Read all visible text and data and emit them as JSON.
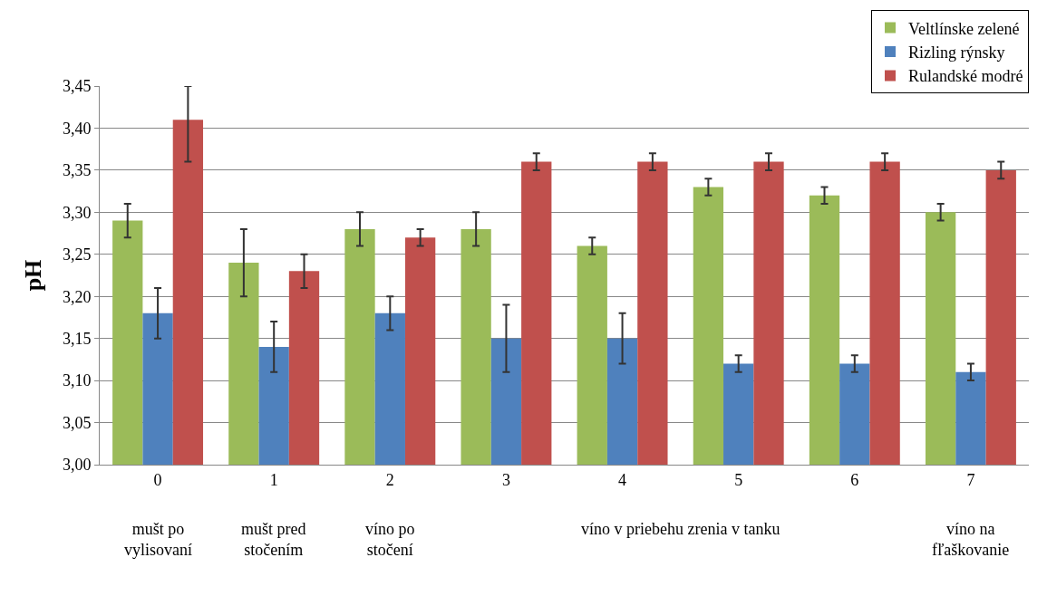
{
  "chart_data": {
    "type": "bar",
    "ylabel": "pH",
    "categories": [
      "0",
      "1",
      "2",
      "3",
      "4",
      "5",
      "6",
      "7"
    ],
    "series": [
      {
        "name": "Veltlínske zelené",
        "color": "#9bbb59",
        "values": [
          3.29,
          3.24,
          3.28,
          3.28,
          3.26,
          3.33,
          3.32,
          3.3
        ],
        "errors": [
          [
            3.27,
            3.31
          ],
          [
            3.2,
            3.28
          ],
          [
            3.26,
            3.3
          ],
          [
            3.26,
            3.3
          ],
          [
            3.25,
            3.27
          ],
          [
            3.32,
            3.34
          ],
          [
            3.31,
            3.33
          ],
          [
            3.29,
            3.31
          ]
        ]
      },
      {
        "name": "Rizling rýnsky",
        "color": "#4f81bd",
        "values": [
          3.18,
          3.14,
          3.18,
          3.15,
          3.15,
          3.12,
          3.12,
          3.11
        ],
        "errors": [
          [
            3.15,
            3.21
          ],
          [
            3.11,
            3.17
          ],
          [
            3.16,
            3.2
          ],
          [
            3.11,
            3.19
          ],
          [
            3.12,
            3.18
          ],
          [
            3.11,
            3.13
          ],
          [
            3.11,
            3.13
          ],
          [
            3.1,
            3.12
          ]
        ]
      },
      {
        "name": "Rulandské modré",
        "color": "#c0504d",
        "values": [
          3.41,
          3.23,
          3.27,
          3.36,
          3.36,
          3.36,
          3.36,
          3.35
        ],
        "errors": [
          [
            3.36,
            3.45
          ],
          [
            3.21,
            3.25
          ],
          [
            3.26,
            3.28
          ],
          [
            3.35,
            3.37
          ],
          [
            3.35,
            3.37
          ],
          [
            3.35,
            3.37
          ],
          [
            3.35,
            3.37
          ],
          [
            3.34,
            3.36
          ]
        ]
      }
    ],
    "ylim": [
      3.0,
      3.45
    ],
    "yticks": [
      {
        "value": 3.0,
        "label": "3,00"
      },
      {
        "value": 3.05,
        "label": "3,05"
      },
      {
        "value": 3.1,
        "label": "3,10"
      },
      {
        "value": 3.15,
        "label": "3,15"
      },
      {
        "value": 3.2,
        "label": "3,20"
      },
      {
        "value": 3.25,
        "label": "3,25"
      },
      {
        "value": 3.3,
        "label": "3,30"
      },
      {
        "value": 3.35,
        "label": "3,35"
      },
      {
        "value": 3.4,
        "label": "3,40"
      },
      {
        "value": 3.45,
        "label": "3,45"
      }
    ],
    "grid": "y",
    "legend": "top right",
    "annotations": [
      "mušt po vylisovaní",
      "mušt pred stočením",
      "víno po stočení",
      "víno v priebehu zrenia v tanku",
      "víno na fľaškovanie"
    ]
  }
}
